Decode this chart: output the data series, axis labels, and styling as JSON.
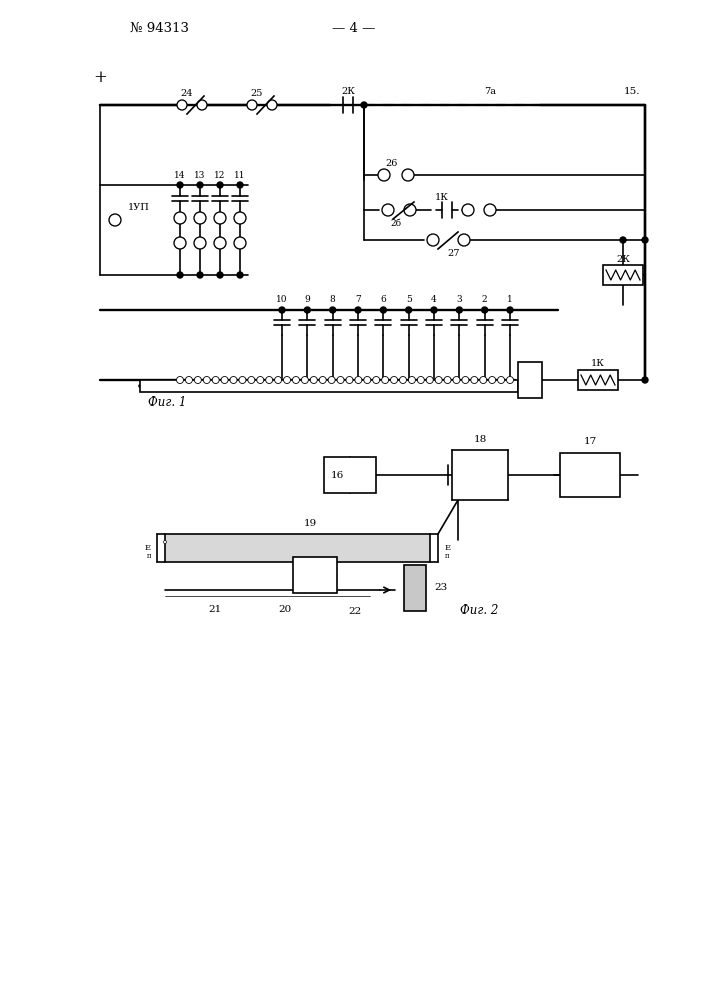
{
  "title_left": "№ 94313",
  "title_center": "— 4 —",
  "fig1_label": "Фиг. 1",
  "fig2_label": "Фиг. 2",
  "contact_labels_top": [
    "1",
    "2",
    "3",
    "4",
    "5",
    "6",
    "7",
    "8",
    "9",
    "10"
  ],
  "label_24": "24",
  "label_25": "25",
  "label_2K_cap": "2К",
  "label_7a": "7а",
  "label_15": "15.",
  "label_26": "26",
  "label_1K_cap": "1К",
  "label_27": "27",
  "label_14": "14",
  "label_13": "13",
  "label_12": "12",
  "label_11": "11",
  "label_1UP": "1УП",
  "label_2K_coil": "2К",
  "label_1K_coil": "1К",
  "label_16": "16",
  "label_17": "17",
  "label_18": "18",
  "label_19": "19",
  "label_20": "20",
  "label_21": "21",
  "label_22": "22",
  "label_23": "23"
}
